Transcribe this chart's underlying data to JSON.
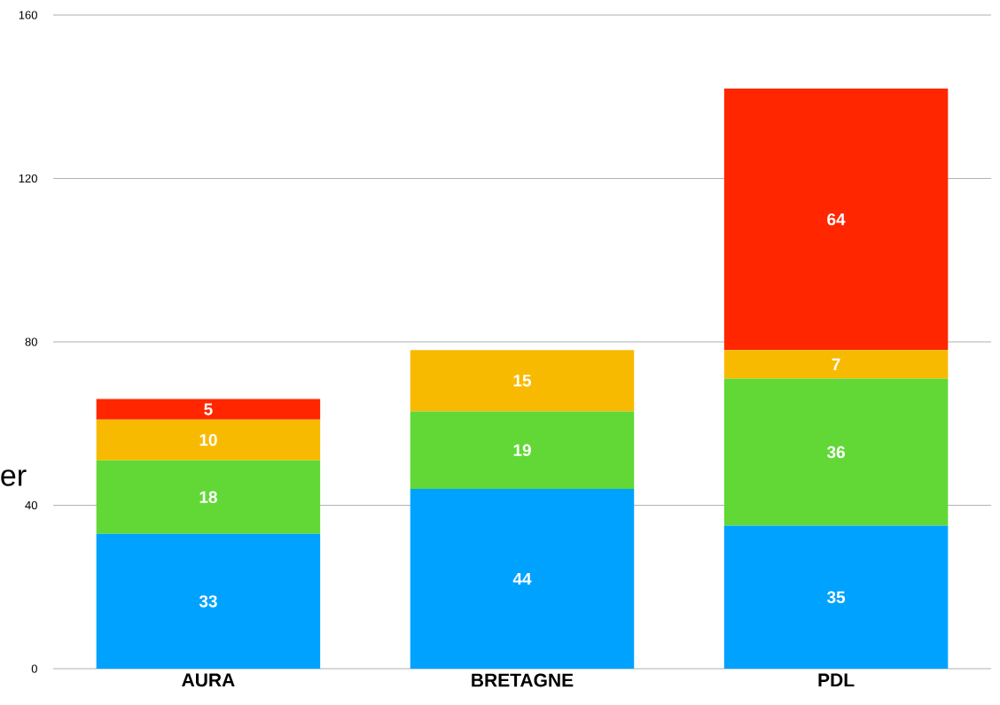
{
  "chart_data": {
    "type": "bar",
    "stacked": true,
    "categories": [
      "AURA",
      "BRETAGNE",
      "PDL"
    ],
    "series": [
      {
        "color": "#00a2ff",
        "values": [
          33,
          44,
          35
        ]
      },
      {
        "color": "#61d836",
        "values": [
          18,
          19,
          36
        ]
      },
      {
        "color": "#f8ba00",
        "values": [
          10,
          15,
          7
        ]
      },
      {
        "color": "#ff2600",
        "values": [
          5,
          null,
          64
        ]
      }
    ],
    "ylim": [
      0,
      160
    ],
    "yticks": [
      0,
      40,
      80,
      120,
      160
    ],
    "grid": "y",
    "data_labels": true,
    "annotations": [
      "er"
    ]
  }
}
